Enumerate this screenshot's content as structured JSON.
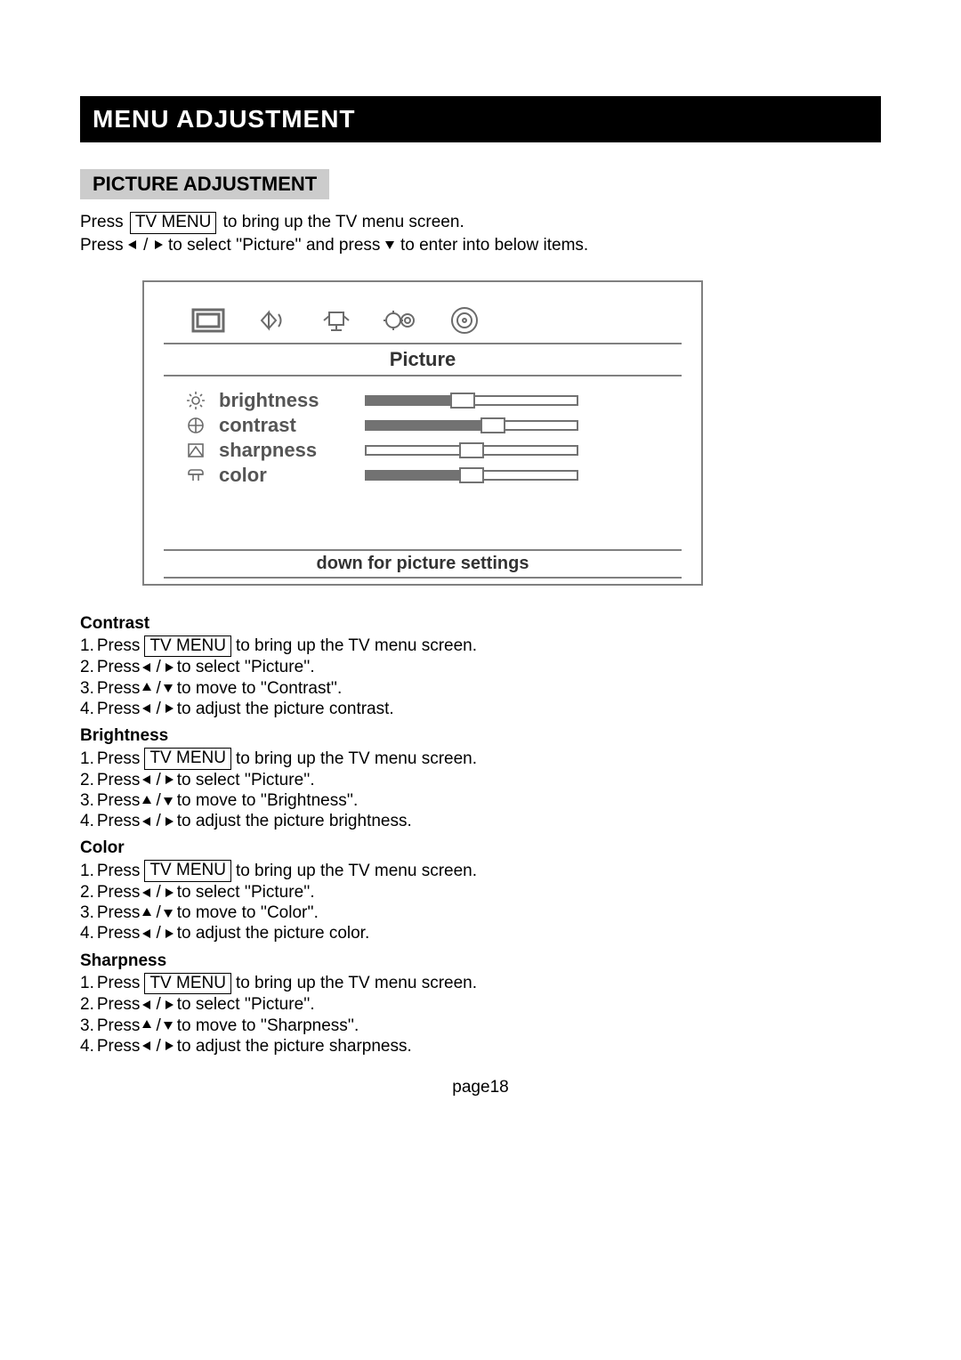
{
  "title_bar": "MENU ADJUSTMENT",
  "section_title": "PICTURE ADJUSTMENT",
  "intro": {
    "line1_pre": "Press",
    "line1_btn": "TV MENU",
    "line1_post": "to bring up the TV menu screen.",
    "line2_pre": "Press",
    "line2_mid": " / ",
    "line2_post1": "to select ''Picture'' and press",
    "line2_post2": "to enter into below items."
  },
  "osd": {
    "header": "Picture",
    "footer": "down for picture settings",
    "settings": [
      {
        "label": "brightness",
        "value_pct": 46,
        "thumb_pct": 46,
        "icon": "sun"
      },
      {
        "label": "contrast",
        "value_pct": 60,
        "thumb_pct": 60,
        "icon": "contrast"
      },
      {
        "label": "sharpness",
        "value_pct": 0,
        "thumb_pct": 50,
        "icon": "sharp"
      },
      {
        "label": "color",
        "value_pct": 50,
        "thumb_pct": 50,
        "icon": "color"
      }
    ],
    "slider_color_fill": "#727272",
    "slider_color_border": "#727272",
    "osd_border_color": "#808080"
  },
  "sub_sections": [
    {
      "heading": "Contrast",
      "steps": [
        {
          "num": "1.",
          "parts": [
            "Press ",
            {
              "key": "TV MENU"
            },
            " to bring up the TV menu screen."
          ]
        },
        {
          "num": "2.",
          "parts": [
            "Press ",
            {
              "arr": "left"
            },
            " / ",
            {
              "arr": "right"
            },
            " to select ''Picture''."
          ]
        },
        {
          "num": "3.",
          "parts": [
            "Press  ",
            {
              "arr": "up"
            },
            "  / ",
            {
              "arr": "down"
            },
            " to move to ''Contrast''."
          ]
        },
        {
          "num": "4.",
          "parts": [
            "Press ",
            {
              "arr": "left"
            },
            " / ",
            {
              "arr": "right"
            },
            " to adjust the picture contrast."
          ]
        }
      ]
    },
    {
      "heading": "Brightness",
      "steps": [
        {
          "num": "1.",
          "parts": [
            "Press ",
            {
              "key": "TV MENU"
            },
            " to bring up the TV menu screen."
          ]
        },
        {
          "num": "2.",
          "parts": [
            "Press ",
            {
              "arr": "left"
            },
            " / ",
            {
              "arr": "right"
            },
            " to select ''Picture''."
          ]
        },
        {
          "num": "3.",
          "parts": [
            "Press  ",
            {
              "arr": "up"
            },
            " /  ",
            {
              "arr": "down"
            },
            "to move to ''Brightness''."
          ]
        },
        {
          "num": "4.",
          "parts": [
            "Press ",
            {
              "arr": "left"
            },
            " / ",
            {
              "arr": "right"
            },
            "  to adjust the picture brightness."
          ]
        }
      ]
    },
    {
      "heading": "Color",
      "steps": [
        {
          "num": "1.",
          "parts": [
            "Press ",
            {
              "key": "TV MENU"
            },
            " to bring up the TV menu screen."
          ]
        },
        {
          "num": "2.",
          "parts": [
            "Press ",
            {
              "arr": "left"
            },
            " /  ",
            {
              "arr": "right"
            },
            " to select ''Picture''."
          ]
        },
        {
          "num": "3.",
          "parts": [
            "Press  ",
            {
              "arr": "up"
            },
            " /  ",
            {
              "arr": "down"
            },
            "to move to ''Color''."
          ]
        },
        {
          "num": "4.",
          "parts": [
            "Press ",
            {
              "arr": "left"
            },
            " / ",
            {
              "arr": "right"
            },
            "  to adjust the picture color."
          ]
        }
      ]
    },
    {
      "heading": "Sharpness",
      "steps": [
        {
          "num": "1.",
          "parts": [
            "Press ",
            {
              "key": "TV MENU"
            },
            " to bring up the TV menu screen."
          ]
        },
        {
          "num": "2.",
          "parts": [
            "Press ",
            {
              "arr": "left"
            },
            " / ",
            {
              "arr": "right"
            },
            " to select ''Picture''."
          ]
        },
        {
          "num": "3.",
          "parts": [
            "Press  ",
            {
              "arr": "up"
            },
            " /  ",
            {
              "arr": "down"
            },
            "to move to ''Sharpness''."
          ]
        },
        {
          "num": "4.",
          "parts": [
            "Press ",
            {
              "arr": "left"
            },
            " / ",
            {
              "arr": "right"
            },
            " to adjust the picture sharpness."
          ]
        }
      ]
    }
  ],
  "page_number": "page18"
}
